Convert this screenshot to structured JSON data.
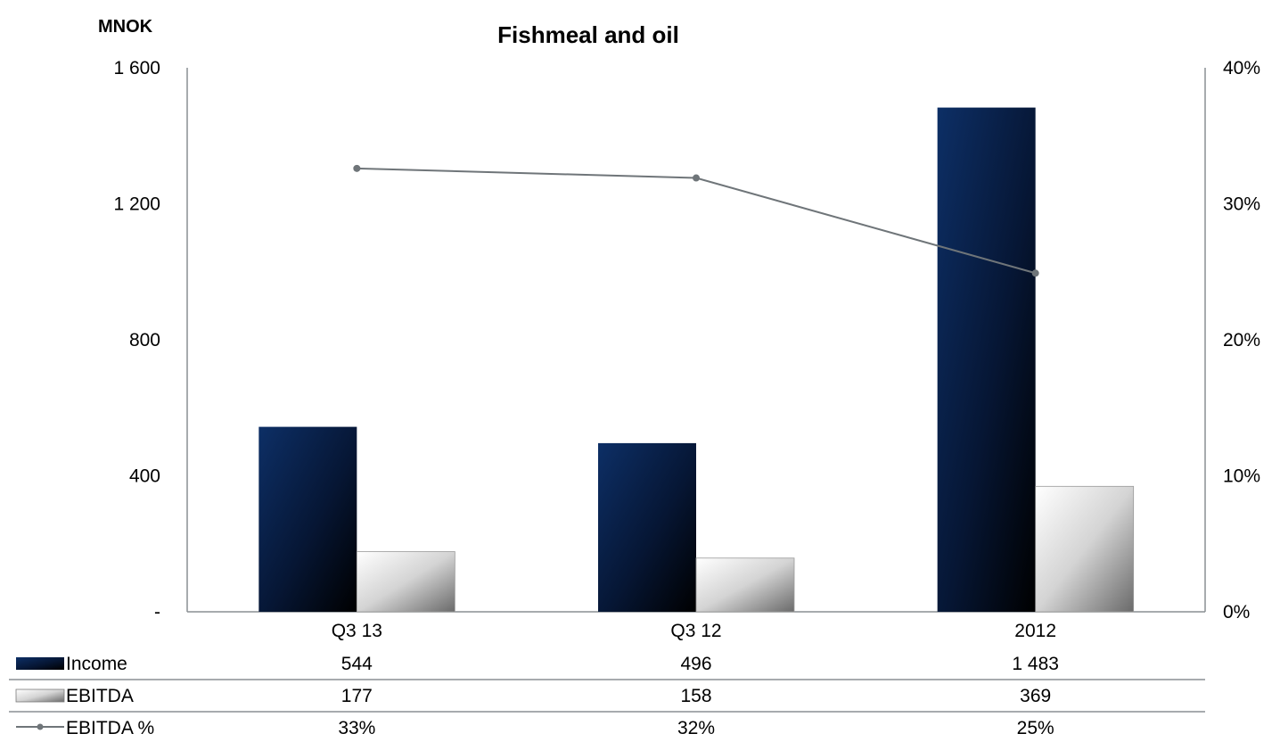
{
  "chart_data": {
    "type": "bar",
    "title": "Fishmeal and oil",
    "ylabel": "MNOK",
    "categories": [
      "Q3 13",
      "Q3 12",
      "2012"
    ],
    "ylim": [
      0,
      1600
    ],
    "yticks": [
      "-",
      "400",
      "800",
      "1 200",
      "1 600"
    ],
    "y2lim": [
      0,
      40
    ],
    "y2ticks": [
      "0%",
      "10%",
      "20%",
      "30%",
      "40%"
    ],
    "series": [
      {
        "name": "Income",
        "values": [
          544,
          496,
          1483
        ],
        "labels": [
          "544",
          "496",
          "1 483"
        ],
        "kind": "bar",
        "color": "#0a2a5e"
      },
      {
        "name": "EBITDA",
        "values": [
          177,
          158,
          369
        ],
        "labels": [
          "177",
          "158",
          "369"
        ],
        "kind": "bar",
        "color": "#d9d9d9"
      },
      {
        "name": "EBITDA %",
        "values": [
          32.6,
          31.9,
          24.9
        ],
        "labels": [
          "33%",
          "32%",
          "25%"
        ],
        "kind": "line",
        "axis": "right",
        "color": "#6f7579"
      }
    ],
    "grid": false,
    "legend": "data-table-below"
  }
}
